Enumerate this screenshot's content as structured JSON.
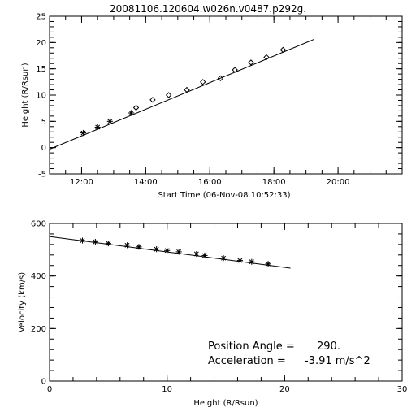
{
  "chart_data": [
    {
      "type": "scatter",
      "title": "20081106.120604.w026n.v0487.p292g.",
      "xlabel": "Start Time (06-Nov-08 10:52:33)",
      "ylabel": "Height (R/Rsun)",
      "xlim": [
        "11:00",
        "22:00"
      ],
      "ylim": [
        -5,
        25
      ],
      "x_ticks": [
        "12:00",
        "14:00",
        "16:00",
        "18:00",
        "20:00"
      ],
      "y_ticks": [
        "-5",
        "0",
        "5",
        "10",
        "15",
        "20",
        "25"
      ],
      "grid": false,
      "fit_line": {
        "x": [
          "10:56",
          "19:15"
        ],
        "y": [
          -0.3,
          20.6
        ]
      },
      "series": [
        {
          "marker": "asterisk",
          "x": [
            "12:03",
            "12:30",
            "12:53",
            "13:33"
          ],
          "y": [
            2.8,
            3.9,
            5.0,
            6.6
          ]
        },
        {
          "marker": "diamond",
          "x": [
            "13:42",
            "14:13",
            "14:43",
            "15:17",
            "15:47",
            "16:20",
            "16:47",
            "17:17",
            "17:46",
            "18:17"
          ],
          "y": [
            7.6,
            9.1,
            10.0,
            11.0,
            12.5,
            13.2,
            14.8,
            16.2,
            17.2,
            18.6
          ]
        }
      ]
    },
    {
      "type": "scatter",
      "title": "",
      "xlabel": "Height (R/Rsun)",
      "ylabel": "Velocity (km/s)",
      "xlim": [
        0,
        30
      ],
      "ylim": [
        0,
        600
      ],
      "x_ticks": [
        "0",
        "10",
        "20",
        "30"
      ],
      "y_ticks": [
        "0",
        "200",
        "400",
        "600"
      ],
      "grid": false,
      "fit_line": {
        "x": [
          0,
          20.5
        ],
        "y": [
          550,
          430
        ]
      },
      "series": [
        {
          "marker": "asterisk",
          "x": [
            2.8,
            3.9,
            5.0,
            6.6,
            7.6,
            9.1,
            10.0,
            11.0,
            12.5,
            13.2,
            14.8,
            16.2,
            17.2,
            18.6
          ],
          "y": [
            535,
            530,
            524,
            517,
            511,
            502,
            497,
            492,
            484,
            478,
            468,
            459,
            454,
            446
          ]
        }
      ],
      "annotations": [
        {
          "label": "Position Angle =",
          "value": "290."
        },
        {
          "label": "Acceleration =",
          "value": "-3.91 m/s^2"
        }
      ]
    }
  ]
}
